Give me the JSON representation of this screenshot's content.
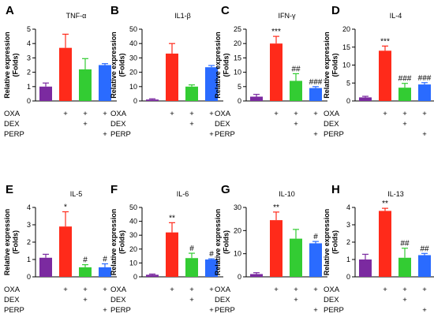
{
  "treatment_rows": [
    "OXA",
    "DEX",
    "PERP"
  ],
  "treatment_design": [
    [
      false,
      true,
      true,
      true
    ],
    [
      false,
      false,
      true,
      false
    ],
    [
      false,
      false,
      false,
      true
    ]
  ],
  "bar_colors": [
    "#7b2aa0",
    "#ff2a1a",
    "#33cc33",
    "#2a6bff"
  ],
  "chart_data": [
    {
      "type": "bar",
      "panel": "A",
      "title": "TNF-α",
      "ylabel": "Relative expression (Folds)",
      "ylim": [
        0,
        5
      ],
      "yticks": [
        0,
        1,
        2,
        3,
        4,
        5
      ],
      "values": [
        1.0,
        3.7,
        2.2,
        2.5
      ],
      "errors": [
        0.25,
        0.95,
        0.75,
        0.1
      ],
      "significance": [
        "",
        "",
        "",
        ""
      ]
    },
    {
      "type": "bar",
      "panel": "B",
      "title": "IL1-β",
      "ylabel": "Relative expression (Folds)",
      "ylim": [
        0,
        50
      ],
      "yticks": [
        0,
        10,
        20,
        30,
        40,
        50
      ],
      "values": [
        1.0,
        33,
        10,
        23.5
      ],
      "errors": [
        0.5,
        7,
        1.2,
        1.2
      ],
      "significance": [
        "",
        "",
        "",
        ""
      ]
    },
    {
      "type": "bar",
      "panel": "C",
      "title": "IFN-γ",
      "ylabel": "Relative expression (Folds)",
      "ylim": [
        0,
        25
      ],
      "yticks": [
        0,
        5,
        10,
        15,
        20,
        25
      ],
      "values": [
        1.5,
        20,
        7,
        4.5
      ],
      "errors": [
        0.8,
        2.5,
        2.5,
        0.5
      ],
      "significance": [
        "",
        "***",
        "##",
        "###"
      ]
    },
    {
      "type": "bar",
      "panel": "D",
      "title": "IL-4",
      "ylabel": "Relative expression (Folds)",
      "ylim": [
        0,
        20
      ],
      "yticks": [
        0,
        5,
        10,
        15,
        20
      ],
      "values": [
        1.0,
        14,
        3.7,
        4.6
      ],
      "errors": [
        0.3,
        1.3,
        1.2,
        0.5
      ],
      "significance": [
        "",
        "***",
        "###",
        "###"
      ]
    },
    {
      "type": "bar",
      "panel": "E",
      "title": "IL-5",
      "ylabel": "Relative expression (Folds)",
      "ylim": [
        0,
        4
      ],
      "yticks": [
        0,
        1,
        2,
        3,
        4
      ],
      "values": [
        1.1,
        2.9,
        0.55,
        0.55
      ],
      "errors": [
        0.2,
        0.85,
        0.15,
        0.2
      ],
      "significance": [
        "",
        "*",
        "#",
        "#"
      ]
    },
    {
      "type": "bar",
      "panel": "F",
      "title": "IL-6",
      "ylabel": "Relative expression (Folds)",
      "ylim": [
        0,
        50
      ],
      "yticks": [
        0,
        10,
        20,
        30,
        40,
        50
      ],
      "values": [
        1.5,
        32,
        13.5,
        12.5
      ],
      "errors": [
        0.5,
        7,
        3.5,
        0.5
      ],
      "significance": [
        "",
        "**",
        "#",
        "#"
      ]
    },
    {
      "type": "bar",
      "panel": "G",
      "title": "IL-10",
      "ylabel": "Relative expression (Folds)",
      "ylim": [
        0,
        30
      ],
      "yticks": [
        0,
        10,
        20,
        30
      ],
      "values": [
        1.2,
        24.5,
        16.5,
        14.5
      ],
      "errors": [
        0.6,
        3.5,
        4,
        0.8
      ],
      "significance": [
        "",
        "**",
        "",
        "#"
      ]
    },
    {
      "type": "bar",
      "panel": "H",
      "title": "IL-13",
      "ylabel": "Relative expression (Folds)",
      "ylim": [
        0,
        4
      ],
      "yticks": [
        0,
        1,
        2,
        3,
        4
      ],
      "values": [
        1.0,
        3.8,
        1.1,
        1.25
      ],
      "errors": [
        0.3,
        0.15,
        0.55,
        0.1
      ],
      "significance": [
        "",
        "**",
        "##",
        "##"
      ]
    }
  ]
}
